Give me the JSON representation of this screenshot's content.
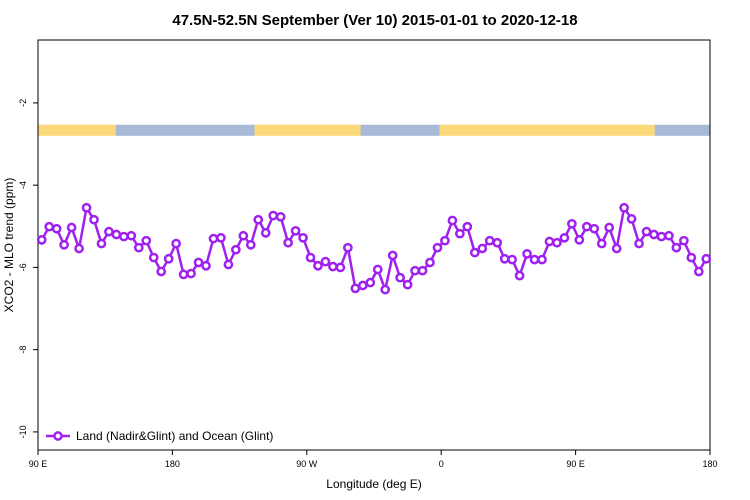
{
  "chart_data": {
    "type": "line",
    "title": "47.5N-52.5N September (Ver 10)   2015-01-01 to 2020-12-18",
    "x_label": "Longitude (deg E)",
    "y_label": "XCO2 - MLO trend (ppm)",
    "xlim": [
      90,
      540
    ],
    "ylim": [
      -10.44,
      -0.47
    ],
    "xticks": [
      {
        "value": 90,
        "label": "90 E"
      },
      {
        "value": 180,
        "label": "180"
      },
      {
        "value": 270,
        "label": "90 W"
      },
      {
        "value": 360,
        "label": "0"
      },
      {
        "value": 450,
        "label": "90 E"
      },
      {
        "value": 540,
        "label": "180"
      }
    ],
    "yticks": [
      -2,
      -4,
      -6,
      -8,
      -10
    ],
    "legend": "bottom-left",
    "surface_band": {
      "y": [
        -2.8,
        -2.53
      ],
      "land_color": "#fbd97a",
      "ocean_color": "#a7b9d7",
      "segments": [
        {
          "start": 90,
          "end": 142,
          "type": "land"
        },
        {
          "start": 142,
          "end": 235,
          "type": "ocean"
        },
        {
          "start": 235,
          "end": 306,
          "type": "land"
        },
        {
          "start": 306,
          "end": 359,
          "type": "ocean"
        },
        {
          "start": 359,
          "end": 503,
          "type": "land"
        },
        {
          "start": 503,
          "end": 540,
          "type": "ocean"
        }
      ]
    },
    "x": [
      92.5,
      97.5,
      102.5,
      107.5,
      112.5,
      117.5,
      122.5,
      127.5,
      132.5,
      137.5,
      142.5,
      147.5,
      152.5,
      157.5,
      162.5,
      167.5,
      172.5,
      177.5,
      182.5,
      187.5,
      192.5,
      197.5,
      202.5,
      207.5,
      212.5,
      217.5,
      222.5,
      227.5,
      232.5,
      237.5,
      242.5,
      247.5,
      252.5,
      257.5,
      262.5,
      267.5,
      272.5,
      277.5,
      282.5,
      287.5,
      292.5,
      297.5,
      302.5,
      307.5,
      312.5,
      317.5,
      322.5,
      327.5,
      332.5,
      337.5,
      342.5,
      347.5,
      352.5,
      357.5,
      362.5,
      367.5,
      372.5,
      377.5,
      382.5,
      387.5,
      392.5,
      397.5,
      402.5,
      407.5,
      412.5,
      417.5,
      422.5,
      427.5,
      432.5,
      437.5,
      442.5,
      447.5,
      452.5,
      457.5,
      462.5,
      467.5,
      472.5,
      477.5,
      482.5,
      487.5,
      492.5,
      497.5,
      502.5,
      507.5,
      512.5,
      517.5,
      522.5,
      527.5,
      532.5,
      537.5
    ],
    "series": [
      {
        "name": "Land (Nadir&Glint) and Ocean (Glint)",
        "color": "#a020f0",
        "values": [
          -5.33,
          -5.01,
          -5.06,
          -5.45,
          -5.03,
          -5.54,
          -4.55,
          -4.84,
          -5.42,
          -5.13,
          -5.2,
          -5.25,
          -5.23,
          -5.52,
          -5.35,
          -5.76,
          -6.1,
          -5.79,
          -5.42,
          -6.17,
          -6.15,
          -5.88,
          -5.96,
          -5.3,
          -5.28,
          -5.93,
          -5.57,
          -5.23,
          -5.45,
          -4.84,
          -5.16,
          -4.74,
          -4.77,
          -5.4,
          -5.11,
          -5.28,
          -5.76,
          -5.96,
          -5.86,
          -5.98,
          -6.0,
          -5.52,
          -6.51,
          -6.44,
          -6.37,
          -6.05,
          -6.54,
          -5.71,
          -6.25,
          -6.42,
          -6.08,
          -6.08,
          -5.88,
          -5.52,
          -5.35,
          -4.86,
          -5.18,
          -5.01,
          -5.64,
          -5.54,
          -5.35,
          -5.4,
          -5.79,
          -5.81,
          -6.2,
          -5.67,
          -5.81,
          -5.81,
          -5.37,
          -5.4,
          -5.28,
          -4.94,
          -5.33,
          -5.01,
          -5.06,
          -5.42,
          -5.03,
          -5.54,
          -4.55,
          -4.82,
          -5.42,
          -5.13,
          -5.2,
          -5.25,
          -5.23,
          -5.52,
          -5.35,
          -5.76,
          -6.1,
          -5.79
        ]
      }
    ]
  }
}
